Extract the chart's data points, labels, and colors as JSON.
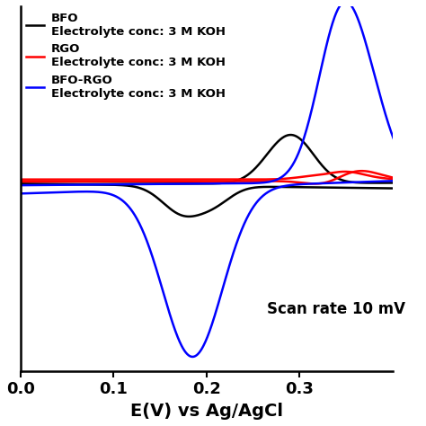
{
  "title": "",
  "xlabel": "E(V) vs Ag/AgCl",
  "ylabel": "",
  "xlim": [
    0.0,
    0.4
  ],
  "ylim": [
    -1.15,
    1.05
  ],
  "xticks": [
    0.0,
    0.1,
    0.2,
    0.3
  ],
  "background_color": "#ffffff",
  "legend_labels": [
    "BFO",
    "Electrolyte conc: 3 M KOH",
    "RGO",
    "Electrolyte conc: 3 M KOH",
    "BFO-RGO",
    "Electrolyte conc: 3 M KOH"
  ],
  "colors": {
    "bfo": "#000000",
    "rgo": "#ff0000",
    "bforgo": "#0000ff"
  },
  "annotation": "Scan rate 10 mV",
  "line_width": 1.8
}
